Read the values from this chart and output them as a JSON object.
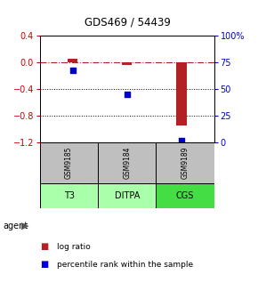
{
  "title": "GDS469 / 54439",
  "columns": [
    "GSM9185",
    "GSM9184",
    "GSM9189"
  ],
  "agents": [
    "T3",
    "DITPA",
    "CGS"
  ],
  "log_ratio": [
    0.05,
    -0.04,
    -0.95
  ],
  "percentile": [
    68,
    45,
    2
  ],
  "ylim_left": [
    -1.2,
    0.4
  ],
  "ylim_right": [
    0,
    100
  ],
  "yticks_left": [
    0.4,
    0.0,
    -0.4,
    -0.8,
    -1.2
  ],
  "yticks_right": [
    100,
    75,
    50,
    25,
    0
  ],
  "ytick_right_labels": [
    "100%",
    "75",
    "50",
    "25",
    "0"
  ],
  "dotted_lines": [
    -0.4,
    -0.8
  ],
  "bar_color": "#B22222",
  "point_color": "#0000CD",
  "bar_width": 0.18,
  "gray_bg": "#BFBFBF",
  "agent_colors": [
    "#AAFFAA",
    "#AAFFAA",
    "#44DD44"
  ],
  "legend_log_color": "#B22222",
  "legend_pct_color": "#0000CD",
  "left_tick_color": "#CC0000",
  "right_tick_color": "#0000CD"
}
